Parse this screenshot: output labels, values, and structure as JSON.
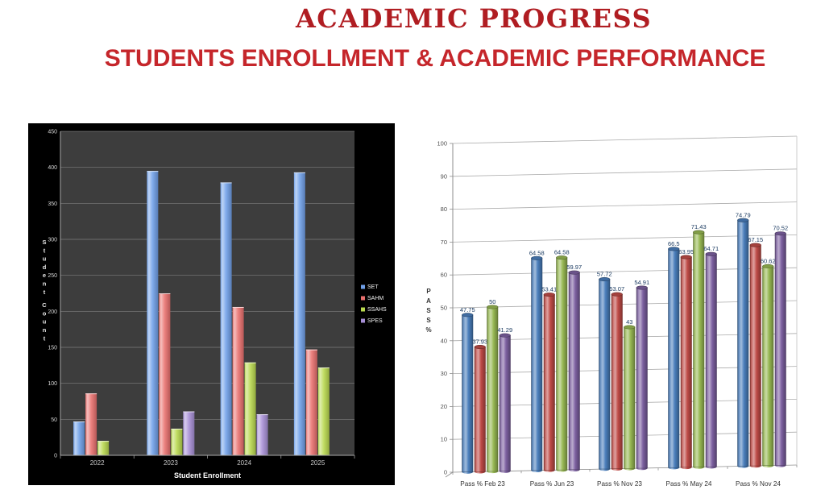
{
  "header": {
    "title": "ACADEMIC PROGRESS",
    "subtitle": "STUDENTS ENROLLMENT & ACADEMIC PERFORMANCE"
  },
  "chart_data": [
    {
      "name": "student-enrollment",
      "type": "bar",
      "title": "",
      "xlabel": "Student Enrollment",
      "ylabel": "Student Count",
      "ylim": [
        0,
        450
      ],
      "ytick_step": 50,
      "grid": true,
      "legend_position": "right",
      "categories": [
        "2022",
        "2023",
        "2024",
        "2025"
      ],
      "series": [
        {
          "name": "SET",
          "color": "#6f9fe8",
          "values": [
            47,
            395,
            379,
            393
          ]
        },
        {
          "name": "SAHM",
          "color": "#e9706e",
          "values": [
            86,
            225,
            206,
            147
          ]
        },
        {
          "name": "SSAHS",
          "color": "#b8d84e",
          "values": [
            20,
            37,
            129,
            122
          ]
        },
        {
          "name": "SPES",
          "color": "#a78fd6",
          "values": [
            null,
            61,
            57,
            null
          ]
        }
      ],
      "theme": {
        "background": "#000000",
        "plot": "#3d3d3d",
        "grid": "#7e7e7e",
        "text": "#d6d6d6"
      }
    },
    {
      "name": "pass-percentage",
      "type": "bar",
      "title": "",
      "xlabel": "",
      "ylabel": "PASS %",
      "ylim": [
        0,
        100
      ],
      "ytick_step": 10,
      "grid": true,
      "legend_position": "none",
      "data_labels": true,
      "categories": [
        "Pass % Feb 23",
        "Pass % Jun 23",
        "Pass % Nov 23",
        "Pass % May 24",
        "Pass % Nov 24"
      ],
      "series": [
        {
          "name": "",
          "color": "#4a7ebb",
          "values": [
            47.75,
            64.58,
            57.72,
            66.5,
            74.79
          ]
        },
        {
          "name": "",
          "color": "#bf4b47",
          "values": [
            37.93,
            53.41,
            53.07,
            63.95,
            67.15
          ]
        },
        {
          "name": "",
          "color": "#97b853",
          "values": [
            50,
            64.58,
            43,
            71.43,
            60.62
          ]
        },
        {
          "name": "",
          "color": "#7c60a0",
          "values": [
            41.29,
            59.97,
            54.91,
            64.71,
            70.52
          ]
        }
      ],
      "theme": {
        "background": "#ffffff",
        "grid": "#ababab",
        "text": "#4d4d4d",
        "label": "#17375e"
      }
    }
  ]
}
